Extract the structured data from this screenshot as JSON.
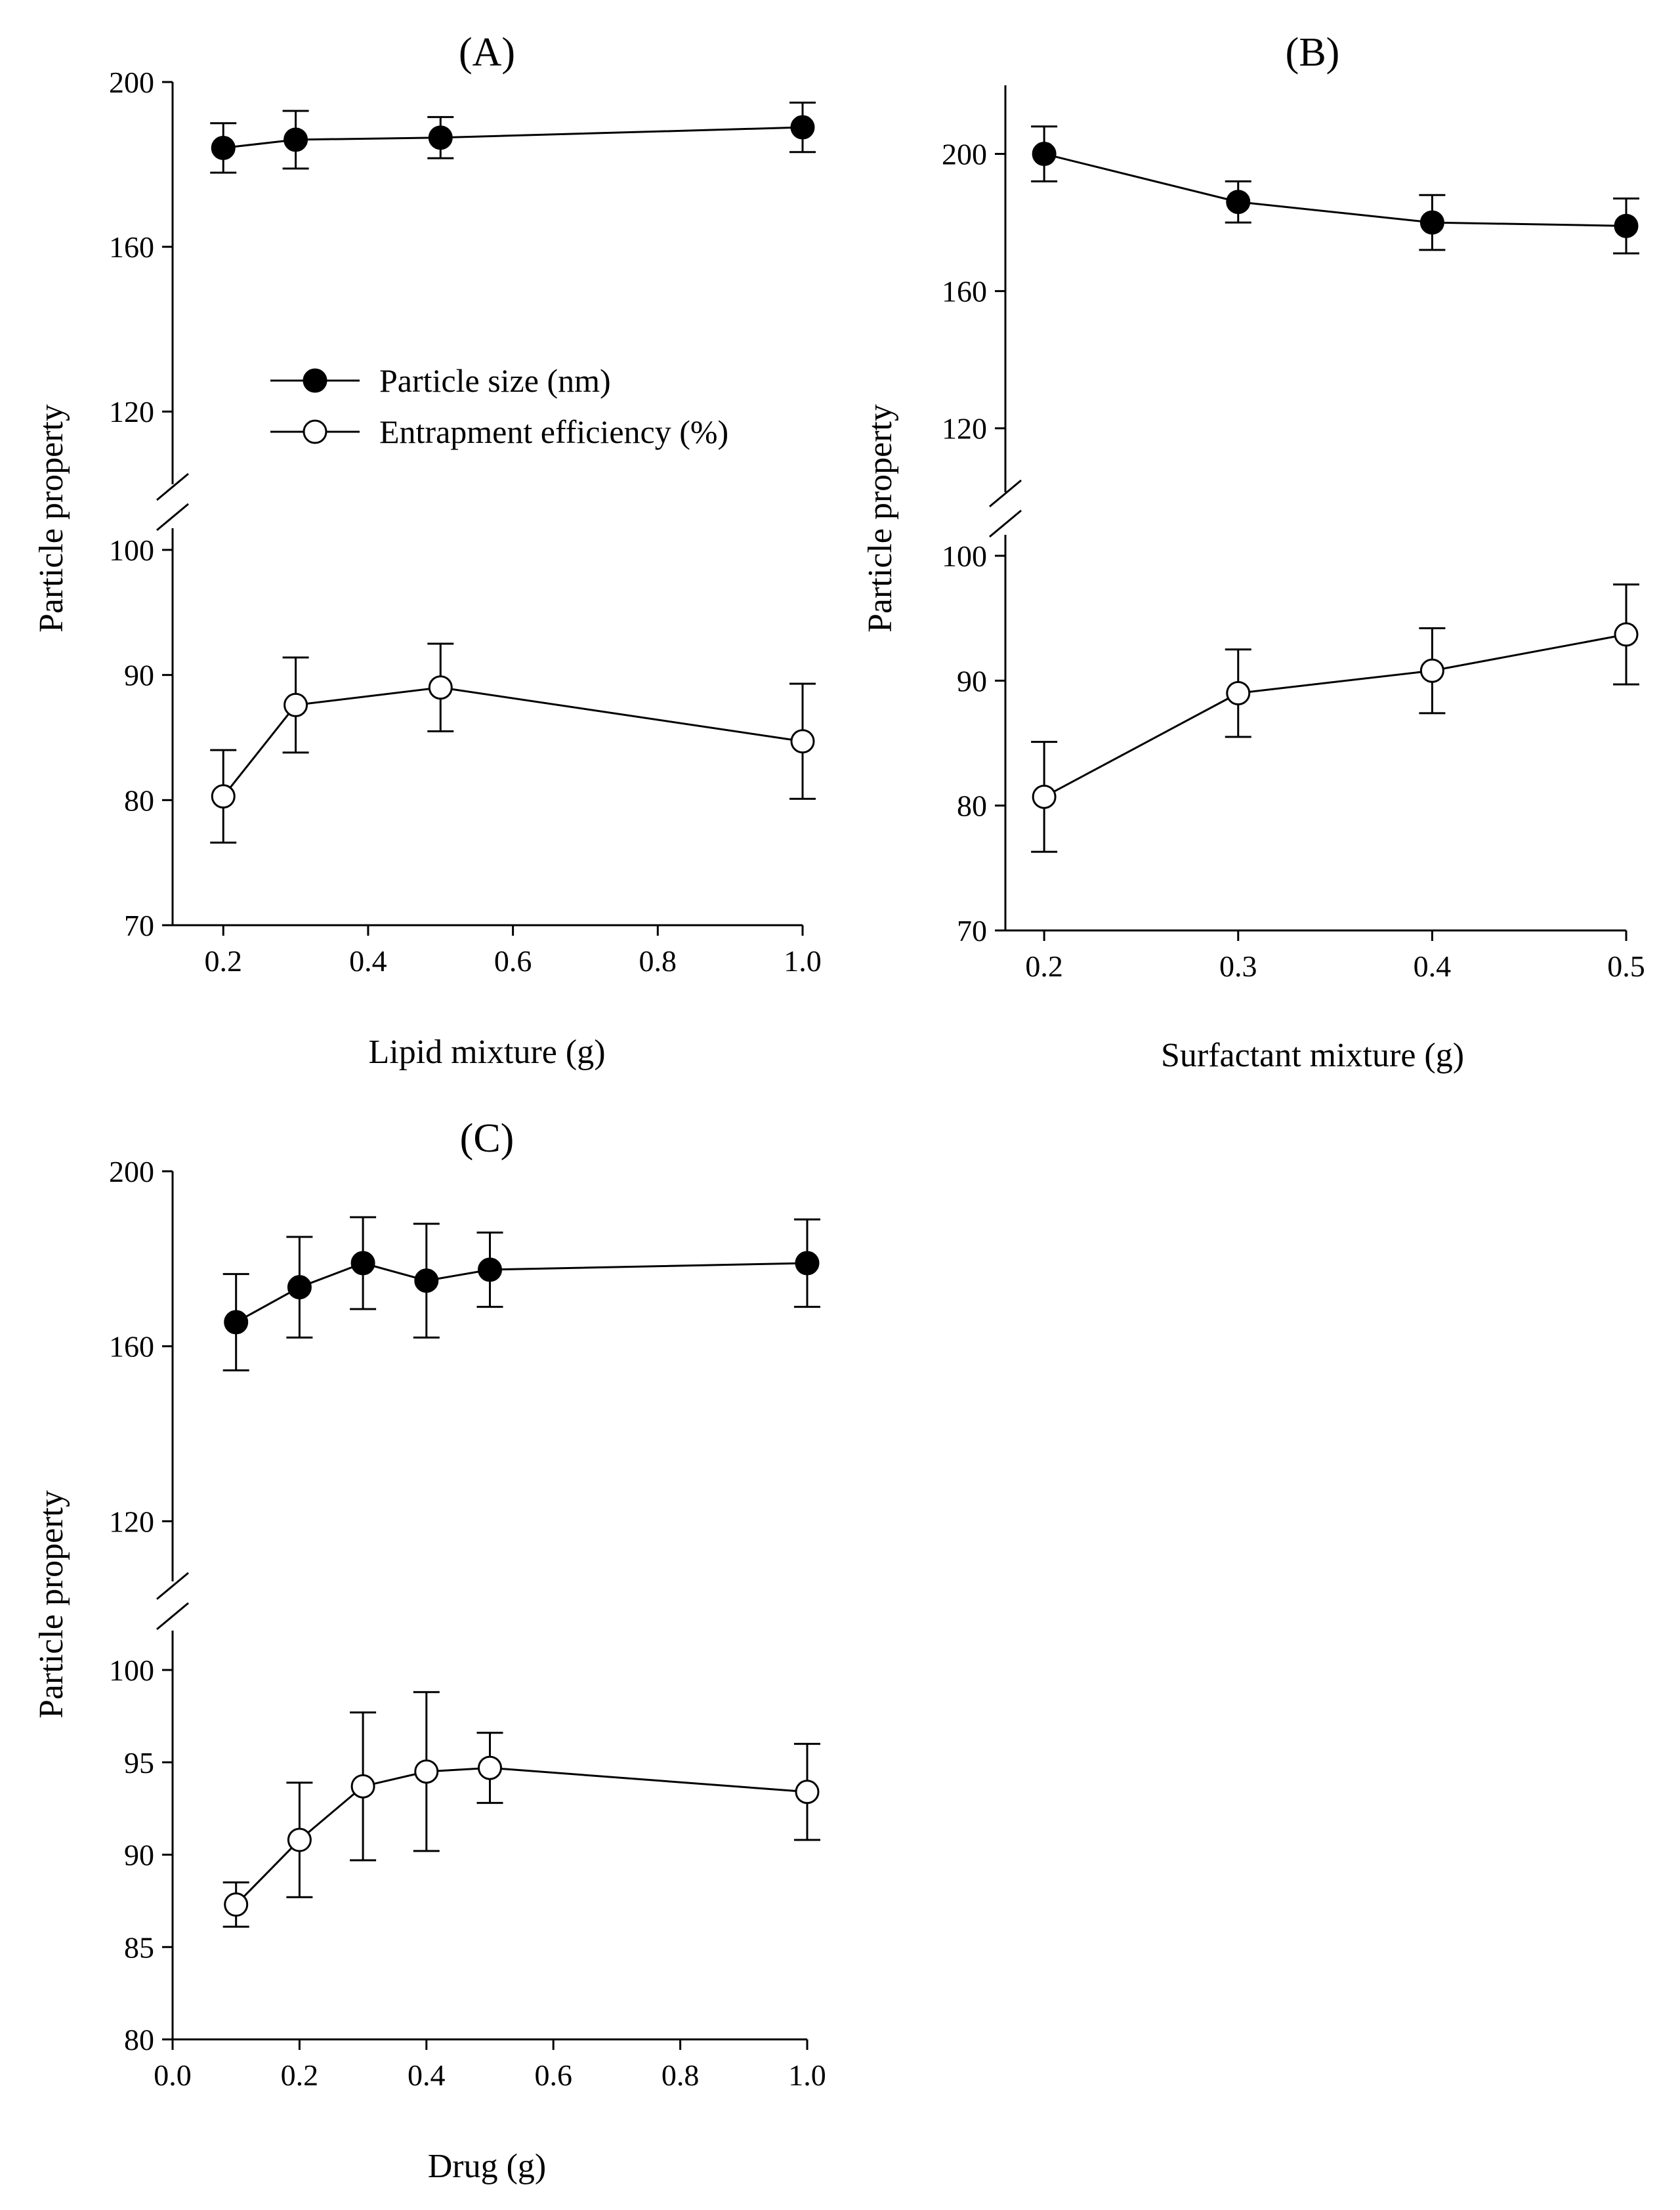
{
  "figure": {
    "panels": [
      {
        "id": "A",
        "title": "(A)",
        "xlabel": "Lipid mixture (g)",
        "ylabel": "Particle property"
      },
      {
        "id": "B",
        "title": "(B)",
        "xlabel": "Surfactant mixture (g)",
        "ylabel": "Particle property"
      },
      {
        "id": "C",
        "title": "(C)",
        "xlabel": "Drug (g)",
        "ylabel": "Particle property"
      }
    ],
    "legend": {
      "items": [
        {
          "label": "Particle size (nm)",
          "marker": "filled-circle"
        },
        {
          "label": "Entrapment efficiency (%)",
          "marker": "open-circle"
        }
      ]
    }
  },
  "chart_data": [
    {
      "type": "line",
      "title": "(A)",
      "xlabel": "Lipid mixture (g)",
      "ylabel": "Particle property",
      "xlim": [
        0.13,
        1.0
      ],
      "xticks": [
        0.2,
        0.4,
        0.6,
        0.8,
        1.0
      ],
      "xtick_labels": [
        "0.2",
        "0.4",
        "0.6",
        "0.8",
        "1.0"
      ],
      "broken_y_axis": true,
      "upper_ylim": [
        110,
        200
      ],
      "upper_yticks": [
        120,
        160,
        200
      ],
      "lower_ylim": [
        70,
        100
      ],
      "lower_yticks": [
        70,
        80,
        90,
        100
      ],
      "legend_position": "upper-middle",
      "series": [
        {
          "name": "Particle size (nm)",
          "marker": "filled",
          "x": [
            0.2,
            0.3,
            0.5,
            1.0
          ],
          "y": [
            184,
            186,
            186.5,
            189
          ],
          "err": [
            6,
            7,
            5,
            6
          ]
        },
        {
          "name": "Entrapment efficiency (%)",
          "marker": "open",
          "x": [
            0.2,
            0.3,
            0.5,
            1.0
          ],
          "y": [
            80.3,
            87.6,
            89.0,
            84.7
          ],
          "err": [
            3.7,
            3.8,
            3.5,
            4.6
          ]
        }
      ]
    },
    {
      "type": "line",
      "title": "(B)",
      "xlabel": "Surfactant mixture (g)",
      "ylabel": "Particle property",
      "xlim": [
        0.18,
        0.5
      ],
      "xticks": [
        0.2,
        0.3,
        0.4,
        0.5
      ],
      "xtick_labels": [
        "0.2",
        "0.3",
        "0.4",
        "0.5"
      ],
      "broken_y_axis": true,
      "upper_ylim": [
        110,
        220
      ],
      "upper_yticks": [
        120,
        160,
        200
      ],
      "lower_ylim": [
        70,
        100
      ],
      "lower_yticks": [
        70,
        80,
        90,
        100
      ],
      "series": [
        {
          "name": "Particle size (nm)",
          "marker": "filled",
          "x": [
            0.2,
            0.3,
            0.4,
            0.5
          ],
          "y": [
            200,
            186,
            180,
            179
          ],
          "err": [
            8,
            6,
            8,
            8
          ]
        },
        {
          "name": "Entrapment efficiency (%)",
          "marker": "open",
          "x": [
            0.2,
            0.3,
            0.4,
            0.5
          ],
          "y": [
            80.7,
            89.0,
            90.8,
            93.7
          ],
          "err": [
            4.4,
            3.5,
            3.4,
            4.0
          ]
        }
      ]
    },
    {
      "type": "line",
      "title": "(C)",
      "xlabel": "Drug (g)",
      "ylabel": "Particle property",
      "xlim": [
        0.0,
        1.0
      ],
      "xticks": [
        0.0,
        0.2,
        0.4,
        0.6,
        0.8,
        1.0
      ],
      "xtick_labels": [
        "0.0",
        "0.2",
        "0.4",
        "0.6",
        "0.8",
        "1.0"
      ],
      "broken_y_axis": true,
      "upper_ylim": [
        110,
        200
      ],
      "upper_yticks": [
        120,
        160,
        200
      ],
      "lower_ylim": [
        80,
        100
      ],
      "lower_yticks": [
        80,
        85,
        90,
        95,
        100
      ],
      "series": [
        {
          "name": "Particle size (nm)",
          "marker": "filled",
          "x": [
            0.1,
            0.2,
            0.3,
            0.4,
            0.5,
            1.0
          ],
          "y": [
            165.5,
            173.5,
            179,
            175,
            177.5,
            179
          ],
          "err": [
            11,
            11.5,
            10.5,
            13,
            8.5,
            10
          ]
        },
        {
          "name": "Entrapment efficiency (%)",
          "marker": "open",
          "x": [
            0.1,
            0.2,
            0.3,
            0.4,
            0.5,
            1.0
          ],
          "y": [
            87.3,
            90.8,
            93.7,
            94.5,
            94.7,
            93.4
          ],
          "err": [
            1.2,
            3.1,
            4.0,
            4.3,
            1.9,
            2.6
          ]
        }
      ]
    }
  ]
}
